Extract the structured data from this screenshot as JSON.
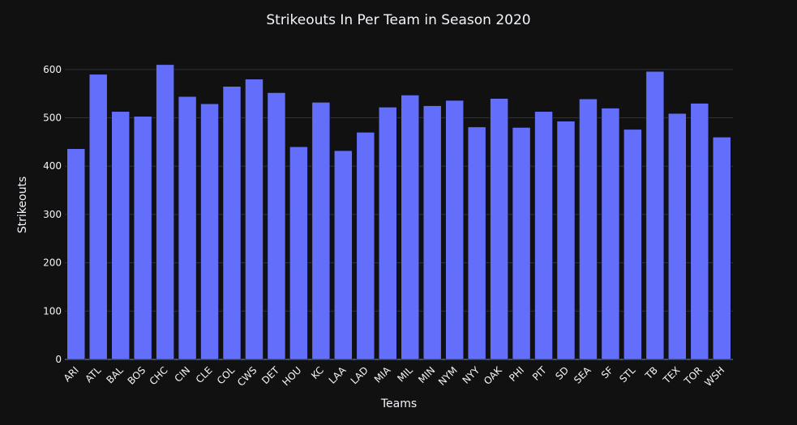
{
  "chart_data": {
    "type": "bar",
    "title": "Strikeouts In Per Team in Season 2020",
    "xlabel": "Teams",
    "ylabel": "Strikeouts",
    "categories": [
      "ARI",
      "ATL",
      "BAL",
      "BOS",
      "CHC",
      "CIN",
      "CLE",
      "COL",
      "CWS",
      "DET",
      "HOU",
      "KC",
      "LAA",
      "LAD",
      "MIA",
      "MIL",
      "MIN",
      "NYM",
      "NYY",
      "OAK",
      "PHI",
      "PIT",
      "SD",
      "SEA",
      "SF",
      "STL",
      "TB",
      "TEX",
      "TOR",
      "WSH"
    ],
    "values": [
      436,
      590,
      513,
      503,
      610,
      544,
      529,
      565,
      580,
      552,
      440,
      532,
      432,
      470,
      522,
      547,
      525,
      536,
      481,
      540,
      480,
      513,
      493,
      539,
      520,
      476,
      596,
      509,
      530,
      460
    ],
    "ylim": [
      0,
      650
    ],
    "yticks": [
      0,
      100,
      200,
      300,
      400,
      500,
      600
    ],
    "grid": true,
    "colors": {
      "bar": "#636efa",
      "background": "#111111",
      "grid": "#283442",
      "text": "#f2f5fa"
    }
  }
}
